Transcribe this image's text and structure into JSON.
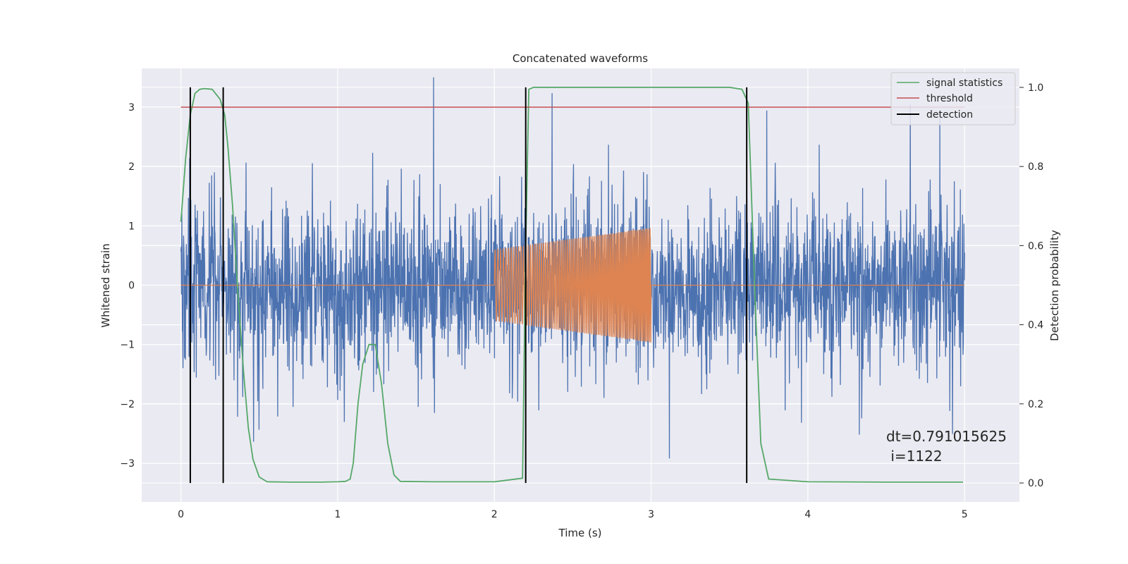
{
  "chart_data": {
    "type": "line",
    "title": "Concatenated waveforms",
    "xlabel": "Time (s)",
    "ylabel_left": "Whitened strain",
    "ylabel_right": "Detection probability",
    "xlim": [
      -0.25,
      5.35
    ],
    "ylim_left": [
      -3.65,
      3.65
    ],
    "ylim_right": [
      -0.048,
      1.048
    ],
    "xticks": [
      0,
      1,
      2,
      3,
      4,
      5
    ],
    "yticks_left": [
      -3,
      -2,
      -1,
      0,
      1,
      2,
      3
    ],
    "yticks_right": [
      0.0,
      0.2,
      0.4,
      0.6,
      0.8,
      1.0
    ],
    "xtick_labels": [
      "0",
      "1",
      "2",
      "3",
      "4",
      "5"
    ],
    "yticks_left_labels": [
      "−3",
      "−2",
      "−1",
      "0",
      "1",
      "2",
      "3"
    ],
    "yticks_right_labels": [
      "0.0",
      "0.2",
      "0.4",
      "0.6",
      "0.8",
      "1.0"
    ],
    "grid": true,
    "legend_position": "top-right",
    "legend": [
      {
        "label": "signal statistics",
        "color": "#55a868"
      },
      {
        "label": "threshold",
        "color": "#c44e52"
      },
      {
        "label": "detection",
        "color": "#000000"
      }
    ],
    "series": [
      {
        "kind": "noise",
        "axis": "left",
        "color": "#4c72b0",
        "x_range": [
          0.0,
          5.0
        ],
        "typical_envelope": 0.7,
        "peak_amplitude": 3.5
      },
      {
        "kind": "injected-signal",
        "axis": "left",
        "color": "#dd8452",
        "baseline": 0,
        "x_range": [
          0.0,
          5.0
        ],
        "chirp_start": 2.0,
        "chirp_end": 3.0,
        "amplitude_start": 0.6,
        "amplitude_end": 0.97
      },
      {
        "name": "signal statistics",
        "axis": "right",
        "color": "#55a868",
        "x": [
          0.0,
          0.03,
          0.06,
          0.09,
          0.12,
          0.15,
          0.2,
          0.25,
          0.28,
          0.3,
          0.33,
          0.36,
          0.4,
          0.43,
          0.46,
          0.5,
          0.55,
          0.7,
          0.9,
          1.0,
          1.05,
          1.08,
          1.1,
          1.13,
          1.16,
          1.2,
          1.24,
          1.28,
          1.32,
          1.36,
          1.4,
          1.6,
          1.8,
          2.0,
          2.18,
          2.2,
          2.22,
          2.25,
          2.5,
          3.0,
          3.5,
          3.58,
          3.62,
          3.66,
          3.7,
          3.75,
          4.0,
          4.5,
          4.99
        ],
        "values": [
          0.66,
          0.82,
          0.93,
          0.985,
          0.995,
          0.997,
          0.995,
          0.97,
          0.93,
          0.85,
          0.7,
          0.5,
          0.28,
          0.14,
          0.06,
          0.015,
          0.003,
          0.002,
          0.002,
          0.003,
          0.004,
          0.01,
          0.05,
          0.2,
          0.3,
          0.35,
          0.35,
          0.25,
          0.1,
          0.02,
          0.004,
          0.003,
          0.003,
          0.003,
          0.012,
          0.6,
          0.995,
          1.0,
          1.0,
          1.0,
          1.0,
          0.995,
          0.96,
          0.5,
          0.1,
          0.01,
          0.003,
          0.002,
          0.002
        ]
      },
      {
        "name": "threshold",
        "axis": "right",
        "color": "#c44e52",
        "x": [
          0.0,
          5.0
        ],
        "values": [
          0.95,
          0.95
        ]
      }
    ],
    "detections": {
      "color": "#000000",
      "x": [
        0.06,
        0.27,
        2.2,
        3.61
      ],
      "y_range_right": [
        0.0,
        1.0
      ]
    },
    "annotation": {
      "lines": [
        "dt=0.791015625",
        " i=1122"
      ],
      "x": 4.5,
      "y_right": 0.105
    }
  }
}
